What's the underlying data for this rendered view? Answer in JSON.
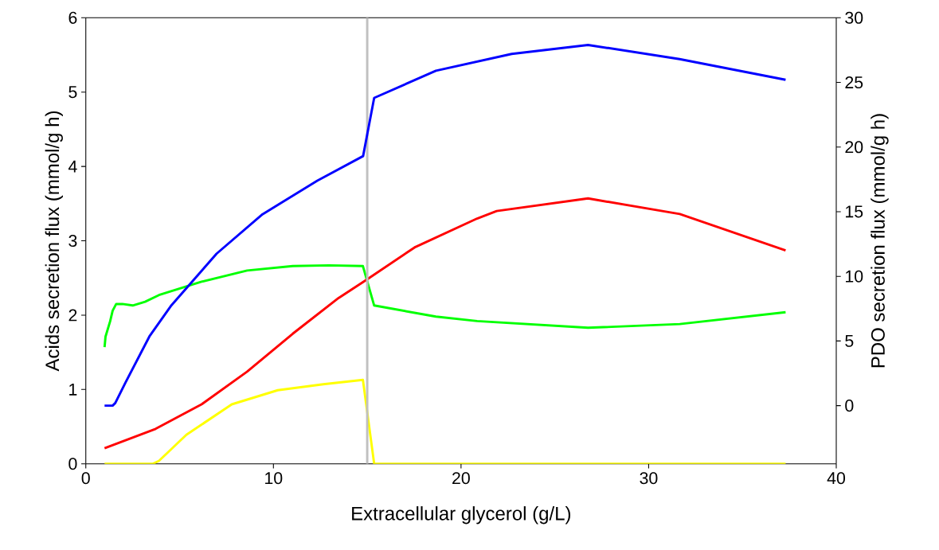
{
  "chart_data": {
    "type": "line",
    "xlabel": "Extracellular glycerol (g/L)",
    "ylabel": "Acids secretion flux (mmol/g h)",
    "y2label": "PDO secretion flux (mmol/g h)",
    "xlim": [
      0,
      40
    ],
    "xticks": [
      0,
      10,
      20,
      30,
      40
    ],
    "ylim": [
      0,
      6
    ],
    "yticks": [
      0,
      1,
      2,
      3,
      4,
      5,
      6
    ],
    "y2lim": [
      -4.5,
      30
    ],
    "y2ticks": [
      0,
      5,
      10,
      15,
      20,
      25,
      30
    ],
    "grid": false,
    "marker": "none",
    "ref_lines": [
      {
        "axis": "x",
        "value": 15,
        "color": "#c0c0c0"
      }
    ],
    "series": [
      {
        "color": "#00ff00",
        "x": [
          1.0,
          1.05,
          1.3,
          1.43,
          1.62,
          1.95,
          2.5,
          3.16,
          3.9,
          6.17,
          8.6,
          11.03,
          12.97,
          14.77,
          15.37,
          18.66,
          20.86,
          26.77,
          31.66,
          37.3
        ],
        "values": [
          1.57,
          1.71,
          1.92,
          2.06,
          2.15,
          2.15,
          2.13,
          2.18,
          2.27,
          2.45,
          2.6,
          2.66,
          2.67,
          2.66,
          2.13,
          1.98,
          1.92,
          1.83,
          1.88,
          2.04
        ]
      },
      {
        "color": "#ff0000",
        "x": [
          1.0,
          3.72,
          6.17,
          8.6,
          11.03,
          13.47,
          14.93,
          17.52,
          20.86,
          21.9,
          26.77,
          31.66,
          37.3
        ],
        "values": [
          0.21,
          0.47,
          0.8,
          1.24,
          1.75,
          2.23,
          2.47,
          2.91,
          3.3,
          3.4,
          3.57,
          3.36,
          2.87
        ]
      },
      {
        "color": "#ffff00",
        "x": [
          1.0,
          3.56,
          3.9,
          5.36,
          7.78,
          10.23,
          12.66,
          14.77,
          15.37,
          37.3
        ],
        "values": [
          0,
          0,
          0.04,
          0.39,
          0.8,
          0.99,
          1.07,
          1.13,
          0,
          0
        ]
      },
      {
        "color": "#0000ff",
        "axis": "y2",
        "x": [
          1.0,
          1.43,
          1.57,
          2.11,
          3.39,
          4.53,
          6.97,
          9.42,
          12.34,
          14.78,
          15.37,
          18.66,
          22.7,
          26.77,
          31.65,
          37.3
        ],
        "values": [
          0,
          0,
          0.2,
          1.77,
          5.35,
          7.7,
          11.75,
          14.8,
          17.4,
          19.3,
          23.8,
          25.9,
          27.2,
          27.9,
          26.8,
          25.2
        ]
      }
    ]
  }
}
